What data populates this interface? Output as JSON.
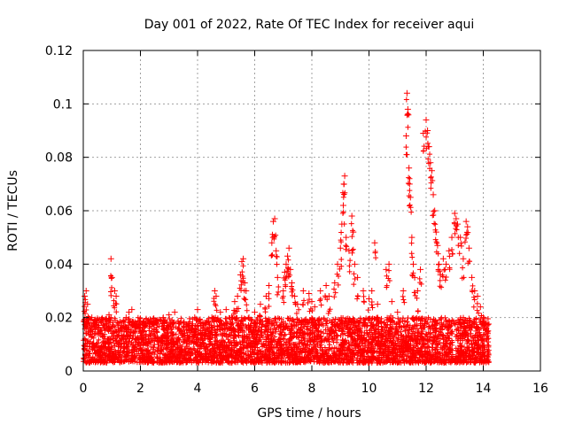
{
  "chart_data": {
    "type": "scatter",
    "title": "Day 001 of 2022, Rate Of TEC Index for receiver aqui",
    "xlabel": "GPS time / hours",
    "ylabel": "ROTI / TECUs",
    "xlim": [
      0,
      16
    ],
    "ylim": [
      0,
      0.12
    ],
    "x_ticks": [
      0,
      2,
      4,
      6,
      8,
      10,
      12,
      14,
      16
    ],
    "x_tick_labels": [
      "0",
      "2",
      "4",
      "6",
      "8",
      "10",
      "12",
      "14",
      "16"
    ],
    "y_ticks": [
      0,
      0.02,
      0.04,
      0.06,
      0.08,
      0.1,
      0.12
    ],
    "y_tick_labels": [
      "0",
      "0.02",
      "0.04",
      "0.06",
      "0.08",
      "0.1",
      "0.12"
    ],
    "grid": true,
    "marker": "+",
    "color": "#ff0000",
    "series": [
      {
        "name": "ROTI",
        "points": [
          [
            0.05,
            0.028
          ],
          [
            0.1,
            0.03
          ],
          [
            0.15,
            0.025
          ],
          [
            0.2,
            0.018
          ],
          [
            0.3,
            0.02
          ],
          [
            0.5,
            0.016
          ],
          [
            0.7,
            0.019
          ],
          [
            0.9,
            0.021
          ],
          [
            0.97,
            0.042
          ],
          [
            1.0,
            0.035
          ],
          [
            1.1,
            0.03
          ],
          [
            1.15,
            0.028
          ],
          [
            1.3,
            0.017
          ],
          [
            1.5,
            0.02
          ],
          [
            1.6,
            0.022
          ],
          [
            1.7,
            0.023
          ],
          [
            2.0,
            0.017
          ],
          [
            2.3,
            0.018
          ],
          [
            2.6,
            0.019
          ],
          [
            2.8,
            0.02
          ],
          [
            3.0,
            0.021
          ],
          [
            3.2,
            0.022
          ],
          [
            3.5,
            0.018
          ],
          [
            3.9,
            0.02
          ],
          [
            4.0,
            0.023
          ],
          [
            4.3,
            0.018
          ],
          [
            4.5,
            0.02
          ],
          [
            4.6,
            0.03
          ],
          [
            4.65,
            0.028
          ],
          [
            4.8,
            0.022
          ],
          [
            5.0,
            0.023
          ],
          [
            5.2,
            0.02
          ],
          [
            5.3,
            0.026
          ],
          [
            5.4,
            0.028
          ],
          [
            5.5,
            0.036
          ],
          [
            5.55,
            0.041
          ],
          [
            5.6,
            0.042
          ],
          [
            5.65,
            0.033
          ],
          [
            5.7,
            0.03
          ],
          [
            5.8,
            0.02
          ],
          [
            6.0,
            0.022
          ],
          [
            6.2,
            0.025
          ],
          [
            6.4,
            0.028
          ],
          [
            6.5,
            0.032
          ],
          [
            6.6,
            0.048
          ],
          [
            6.65,
            0.056
          ],
          [
            6.7,
            0.057
          ],
          [
            6.75,
            0.045
          ],
          [
            6.8,
            0.035
          ],
          [
            7.0,
            0.03
          ],
          [
            7.05,
            0.037
          ],
          [
            7.1,
            0.04
          ],
          [
            7.15,
            0.043
          ],
          [
            7.2,
            0.046
          ],
          [
            7.25,
            0.038
          ],
          [
            7.3,
            0.033
          ],
          [
            7.4,
            0.028
          ],
          [
            7.5,
            0.025
          ],
          [
            7.7,
            0.03
          ],
          [
            7.9,
            0.029
          ],
          [
            8.0,
            0.026
          ],
          [
            8.1,
            0.024
          ],
          [
            8.3,
            0.03
          ],
          [
            8.5,
            0.032
          ],
          [
            8.6,
            0.028
          ],
          [
            8.8,
            0.033
          ],
          [
            8.9,
            0.04
          ],
          [
            9.0,
            0.046
          ],
          [
            9.05,
            0.055
          ],
          [
            9.1,
            0.062
          ],
          [
            9.12,
            0.07
          ],
          [
            9.15,
            0.073
          ],
          [
            9.2,
            0.05
          ],
          [
            9.3,
            0.045
          ],
          [
            9.4,
            0.058
          ],
          [
            9.45,
            0.052
          ],
          [
            9.5,
            0.04
          ],
          [
            9.6,
            0.035
          ],
          [
            9.8,
            0.03
          ],
          [
            10.0,
            0.027
          ],
          [
            10.1,
            0.03
          ],
          [
            10.2,
            0.048
          ],
          [
            10.3,
            0.025
          ],
          [
            10.6,
            0.038
          ],
          [
            10.7,
            0.04
          ],
          [
            10.8,
            0.026
          ],
          [
            11.0,
            0.022
          ],
          [
            11.2,
            0.03
          ],
          [
            11.3,
            0.088
          ],
          [
            11.33,
            0.104
          ],
          [
            11.36,
            0.098
          ],
          [
            11.4,
            0.076
          ],
          [
            11.42,
            0.07
          ],
          [
            11.45,
            0.065
          ],
          [
            11.5,
            0.05
          ],
          [
            11.55,
            0.04
          ],
          [
            11.6,
            0.035
          ],
          [
            11.7,
            0.03
          ],
          [
            11.8,
            0.038
          ],
          [
            11.9,
            0.089
          ],
          [
            12.0,
            0.094
          ],
          [
            12.05,
            0.09
          ],
          [
            12.1,
            0.084
          ],
          [
            12.15,
            0.078
          ],
          [
            12.2,
            0.075
          ],
          [
            12.25,
            0.066
          ],
          [
            12.3,
            0.06
          ],
          [
            12.35,
            0.052
          ],
          [
            12.4,
            0.047
          ],
          [
            12.45,
            0.04
          ],
          [
            12.5,
            0.036
          ],
          [
            12.6,
            0.042
          ],
          [
            12.7,
            0.04
          ],
          [
            12.8,
            0.045
          ],
          [
            12.9,
            0.05
          ],
          [
            13.0,
            0.059
          ],
          [
            13.05,
            0.057
          ],
          [
            13.1,
            0.055
          ],
          [
            13.2,
            0.05
          ],
          [
            13.3,
            0.042
          ],
          [
            13.4,
            0.056
          ],
          [
            13.45,
            0.054
          ],
          [
            13.5,
            0.046
          ],
          [
            13.6,
            0.035
          ],
          [
            13.7,
            0.03
          ],
          [
            13.8,
            0.028
          ],
          [
            13.9,
            0.024
          ],
          [
            14.0,
            0.02
          ],
          [
            14.1,
            0.018
          ]
        ],
        "dense_band": {
          "x_range": [
            0,
            14.2
          ],
          "y_range": [
            0.003,
            0.02
          ],
          "approx_points": 4200
        }
      }
    ]
  }
}
